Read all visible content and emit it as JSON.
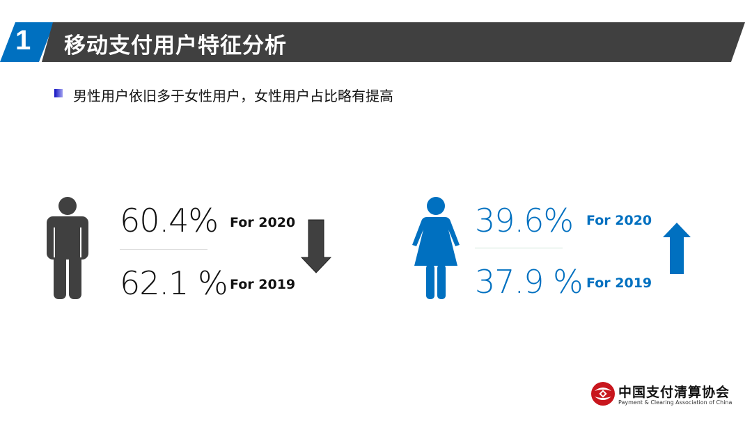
{
  "header": {
    "number": "1",
    "title": "移动支付用户特征分析"
  },
  "subtitle": "男性用户依旧多于女性用户，女性用户占比略有提高",
  "male": {
    "pct_2020": "60.4%",
    "label_2020": "For 2020",
    "pct_2019": "62.1 %",
    "label_2019": "For 2019",
    "trend": "down",
    "color": "#404040"
  },
  "female": {
    "pct_2020": "39.6%",
    "label_2020": "For 2020",
    "pct_2019": "37.9 %",
    "label_2019": "For 2019",
    "trend": "up",
    "color": "#0070c0"
  },
  "logo": {
    "name": "中国支付清算协会",
    "english": "Payment & Clearing Association of China"
  }
}
